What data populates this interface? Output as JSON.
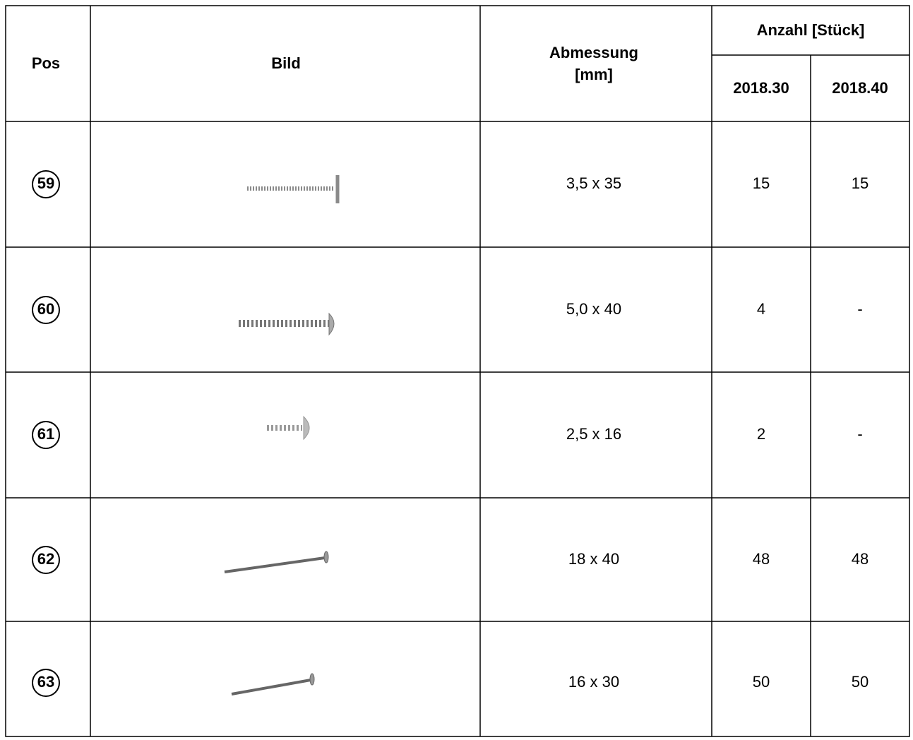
{
  "table": {
    "header": {
      "pos": "Pos",
      "image": "Bild",
      "dimension": [
        "Abmessung",
        "[mm]"
      ],
      "quantity": "Anzahl [Stück]",
      "variants": [
        "2018.30",
        "2018.40"
      ]
    },
    "rows": [
      [
        "59",
        "3,5 x 35",
        "15",
        "15"
      ],
      [
        "60",
        "5,0 x 40",
        "4",
        "-"
      ],
      [
        "61",
        "2,5 x 16",
        "2",
        "-"
      ],
      [
        "62",
        "18 x 40",
        "48",
        "48"
      ],
      [
        "63",
        "16 x 30",
        "50",
        "50"
      ]
    ]
  }
}
